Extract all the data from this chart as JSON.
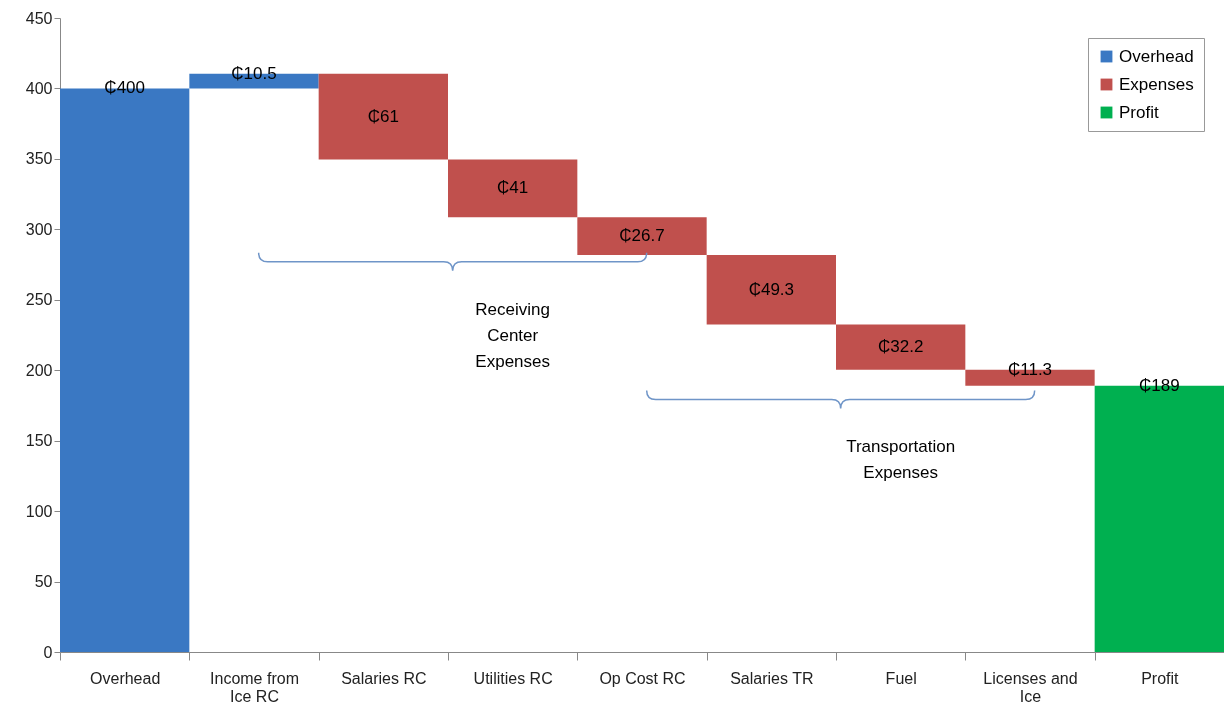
{
  "chart_data": {
    "type": "bar",
    "categories": [
      "Overhead",
      "Income from Ice RC",
      "Salaries RC",
      "Utilities RC",
      "Op Cost RC",
      "Salaries TR",
      "Fuel",
      "Licenses and Ice",
      "Profit"
    ],
    "series": [
      {
        "name": "Overhead",
        "color": "#3a78c3",
        "values": [
          400,
          10.5,
          null,
          null,
          null,
          null,
          null,
          null,
          null
        ],
        "base": [
          0,
          400,
          null,
          null,
          null,
          null,
          null,
          null,
          null
        ],
        "value_labels": [
          "₵400",
          "₵10.5",
          null,
          null,
          null,
          null,
          null,
          null,
          null
        ]
      },
      {
        "name": "Expenses",
        "color": "#c0504d",
        "values": [
          null,
          null,
          61,
          41,
          26.7,
          49.3,
          32.2,
          11.3,
          null
        ],
        "base": [
          null,
          null,
          349.5,
          308.5,
          281.8,
          232.5,
          200.3,
          189,
          null
        ],
        "value_labels": [
          null,
          null,
          "₵61",
          "₵41",
          "₵26.7",
          "₵49.3",
          "₵32.2",
          "₵11.3",
          null
        ]
      },
      {
        "name": "Profit",
        "color": "#00b050",
        "values": [
          null,
          null,
          null,
          null,
          null,
          null,
          null,
          null,
          189
        ],
        "base": [
          null,
          null,
          null,
          null,
          null,
          null,
          null,
          null,
          0
        ],
        "value_labels": [
          null,
          null,
          null,
          null,
          null,
          null,
          null,
          null,
          "₵189"
        ]
      }
    ],
    "ylim": [
      0,
      450
    ],
    "yticks": [
      0,
      50,
      100,
      150,
      200,
      250,
      300,
      350,
      400,
      450
    ],
    "legend": "top right",
    "grid": false,
    "annotations": [
      "Receiving Center Expenses",
      "Transportation Expenses"
    ]
  }
}
